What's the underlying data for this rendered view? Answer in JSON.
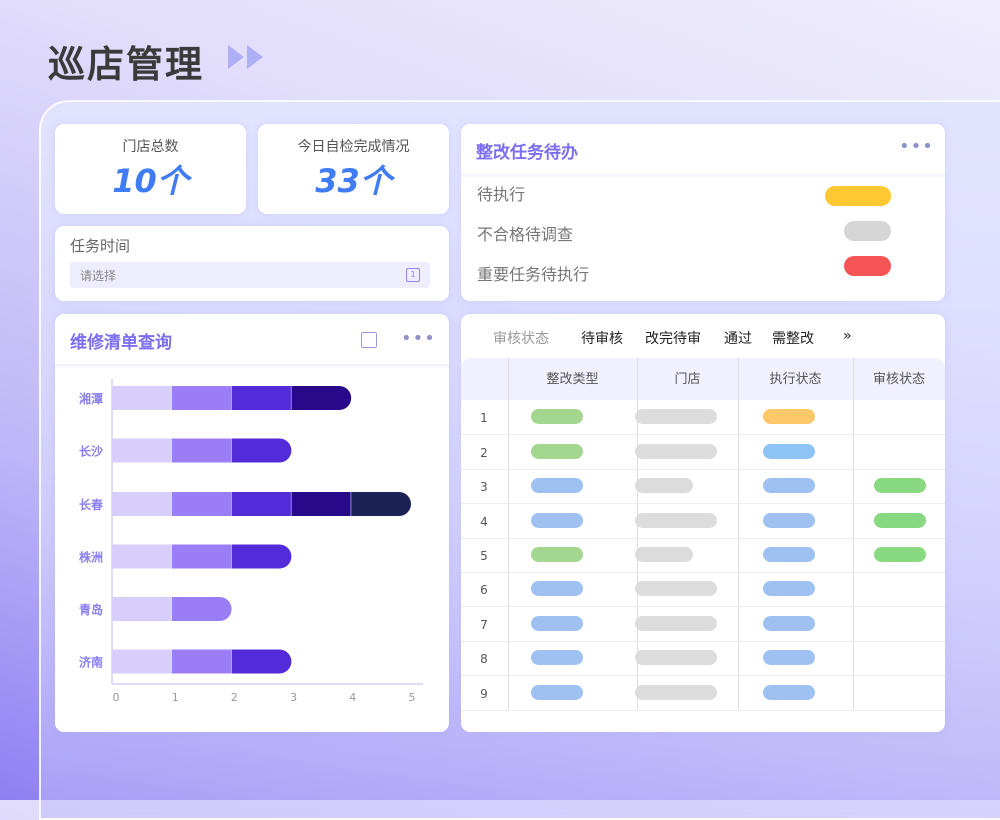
{
  "header": {
    "title": "巡店管理",
    "icon": "double-triangle-right-icon"
  },
  "stats": [
    {
      "label": "门店总数",
      "value": "10个"
    },
    {
      "label": "今日自检完成情况",
      "value": "33个"
    }
  ],
  "task_time": {
    "label": "任务时间",
    "placeholder": "请选择",
    "icon": "calendar-icon"
  },
  "todo": {
    "title": "整改任务待办",
    "more_icon": "more-horizontal-icon",
    "items": [
      {
        "label": "待执行",
        "color": "#fdc830"
      },
      {
        "label": "不合格待调查",
        "color": "#d6d6d6"
      },
      {
        "label": "重要任务待执行",
        "color": "#f55555"
      }
    ]
  },
  "repair": {
    "title": "维修清单查询",
    "export_icon": "share-export-icon",
    "more_icon": "more-horizontal-icon"
  },
  "chart_data": {
    "type": "bar",
    "orientation": "horizontal",
    "stacked": true,
    "categories": [
      "湘潭",
      "长沙",
      "长春",
      "株洲",
      "青岛",
      "济南"
    ],
    "series": [
      {
        "color": "#d8cefb",
        "values": [
          1,
          1,
          1,
          1,
          1,
          1
        ]
      },
      {
        "color": "#9a7ef7",
        "values": [
          1,
          1,
          1,
          1,
          1,
          1
        ]
      },
      {
        "color": "#532bd9",
        "values": [
          1,
          1,
          1,
          1,
          0,
          1
        ]
      },
      {
        "color": "#28098a",
        "values": [
          1,
          0,
          1,
          0,
          0,
          0
        ]
      },
      {
        "color": "#1b2256",
        "values": [
          0,
          0,
          1,
          0,
          0,
          0
        ]
      }
    ],
    "xlim": [
      0,
      5
    ],
    "xticks": [
      "0",
      "1",
      "2",
      "3",
      "4",
      "5"
    ],
    "grid": false
  },
  "review": {
    "filter_label": "审核状态",
    "filters": [
      "待审核",
      "改完待审",
      "通过",
      "需整改"
    ],
    "more": "»",
    "columns": [
      "整改类型",
      "门店",
      "执行状态",
      "审核状态"
    ],
    "rows": [
      {
        "index": "1",
        "type": "#a3d68f",
        "store": "long",
        "exec": "#fcc86a",
        "review": ""
      },
      {
        "index": "2",
        "type": "#a3d68f",
        "store": "long",
        "exec": "#8ec3f5",
        "review": ""
      },
      {
        "index": "3",
        "type": "#9ec1f2",
        "store": "short",
        "exec": "#9ec1f2",
        "review": "#88d982"
      },
      {
        "index": "4",
        "type": "#9ec1f2",
        "store": "long",
        "exec": "#9ec1f2",
        "review": "#88d982"
      },
      {
        "index": "5",
        "type": "#a3d68f",
        "store": "short",
        "exec": "#9ec1f2",
        "review": "#88d982"
      },
      {
        "index": "6",
        "type": "#9ec1f2",
        "store": "long",
        "exec": "#9ec1f2",
        "review": ""
      },
      {
        "index": "7",
        "type": "#9ec1f2",
        "store": "long",
        "exec": "#9ec1f2",
        "review": ""
      },
      {
        "index": "8",
        "type": "#9ec1f2",
        "store": "long",
        "exec": "#9ec1f2",
        "review": ""
      },
      {
        "index": "9",
        "type": "#9ec1f2",
        "store": "long",
        "exec": "#9ec1f2",
        "review": ""
      }
    ]
  }
}
